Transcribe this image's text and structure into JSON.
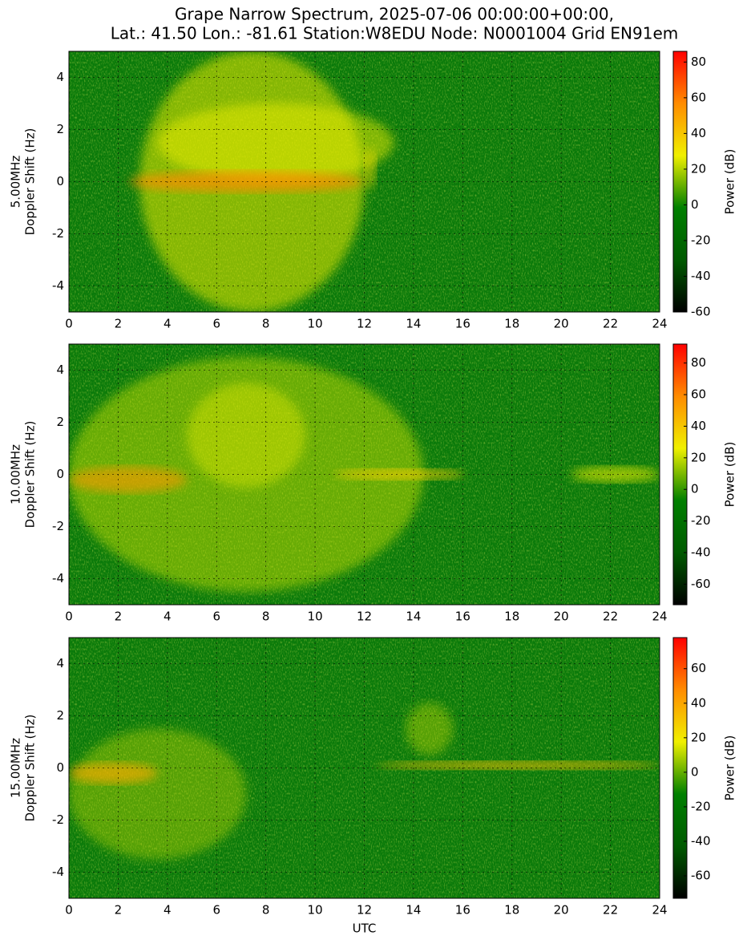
{
  "title": [
    "Grape Narrow Spectrum, 2025-07-06 00:00:00+00:00,",
    "Lat.: 41.50 Lon.: -81.61 Station:W8EDU Node: N0001004 Grid EN91em"
  ],
  "colormap": [
    "#000000",
    "#005a00",
    "#008000",
    "#f0f000",
    "#ff8c00",
    "#ff0000"
  ],
  "chart_data": [
    {
      "type": "spectrogram",
      "ylabel": [
        "5.00MHz",
        "Doppler Shift (Hz)"
      ],
      "xlim": [
        0,
        24
      ],
      "xticks": [
        0,
        2,
        4,
        6,
        8,
        10,
        12,
        14,
        16,
        18,
        20,
        22,
        24
      ],
      "ylim": [
        -5,
        5
      ],
      "yticks": [
        -4,
        -2,
        0,
        2,
        4
      ],
      "grid": true,
      "colorbar_label": "Power (dB)",
      "clim": [
        -60,
        86
      ],
      "cticks": [
        -60,
        -40,
        -20,
        0,
        20,
        40,
        60,
        80
      ]
    },
    {
      "type": "spectrogram",
      "ylabel": [
        "10.00MHz",
        "Doppler Shift (Hz)"
      ],
      "xlim": [
        0,
        24
      ],
      "xticks": [
        0,
        2,
        4,
        6,
        8,
        10,
        12,
        14,
        16,
        18,
        20,
        22,
        24
      ],
      "ylim": [
        -5,
        5
      ],
      "yticks": [
        -4,
        -2,
        0,
        2,
        4
      ],
      "grid": true,
      "colorbar_label": "Power (dB)",
      "clim": [
        -73,
        92
      ],
      "cticks": [
        -60,
        -40,
        -20,
        0,
        20,
        40,
        60,
        80
      ]
    },
    {
      "type": "spectrogram",
      "ylabel": [
        "15.00MHz",
        "Doppler Shift (Hz)"
      ],
      "xlabel": "UTC",
      "xlim": [
        0,
        24
      ],
      "xticks": [
        0,
        2,
        4,
        6,
        8,
        10,
        12,
        14,
        16,
        18,
        20,
        22,
        24
      ],
      "ylim": [
        -5,
        5
      ],
      "yticks": [
        -4,
        -2,
        0,
        2,
        4
      ],
      "grid": true,
      "colorbar_label": "Power (dB)",
      "clim": [
        -73,
        78
      ],
      "cticks": [
        -60,
        -40,
        -20,
        0,
        20,
        40,
        60
      ]
    }
  ]
}
